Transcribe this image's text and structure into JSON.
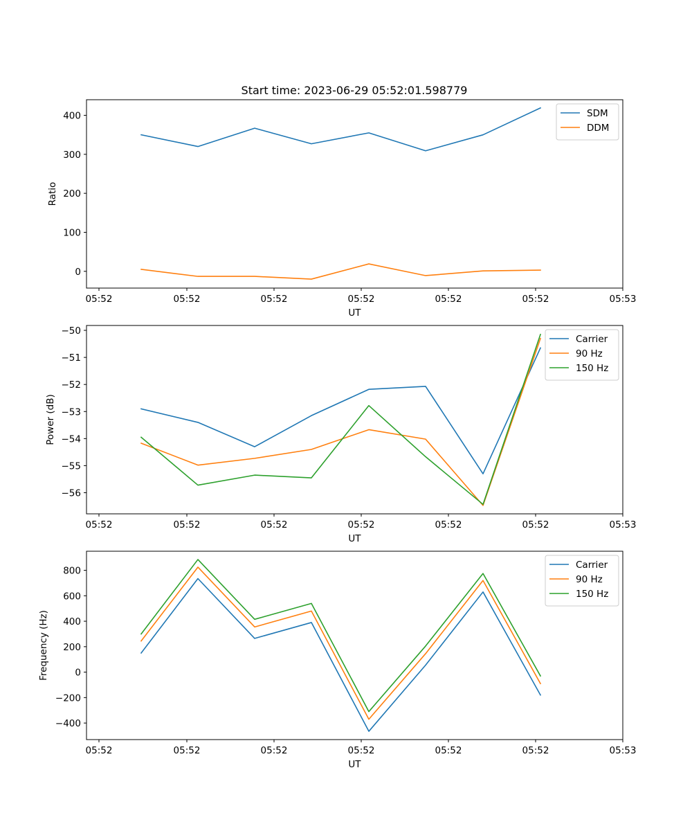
{
  "chart_data": [
    {
      "type": "line",
      "title": "Start time: 2023-06-29 05:52:01.598779",
      "xlabel": "UT",
      "ylabel": "Ratio",
      "x_tick_labels": [
        "05:52",
        "05:52",
        "05:52",
        "05:52",
        "05:52",
        "05:52",
        "05:53"
      ],
      "y_ticks": [
        0,
        100,
        200,
        300,
        400
      ],
      "ylim": [
        -43,
        440
      ],
      "grid": false,
      "legend_position": "upper right",
      "series": [
        {
          "name": "SDM",
          "color": "#1f77b4",
          "values": [
            350,
            320,
            367,
            327,
            355,
            309,
            350,
            419
          ]
        },
        {
          "name": "DDM",
          "color": "#ff7f0e",
          "values": [
            5,
            -13,
            -13,
            -20,
            19,
            -11,
            1,
            3
          ]
        }
      ]
    },
    {
      "type": "line",
      "title": "",
      "xlabel": "UT",
      "ylabel": "Power (dB)",
      "x_tick_labels": [
        "05:52",
        "05:52",
        "05:52",
        "05:52",
        "05:52",
        "05:52",
        "05:53"
      ],
      "y_ticks": [
        -56,
        -55,
        -54,
        -53,
        -52,
        -51,
        -50
      ],
      "ylim": [
        -56.78,
        -49.82
      ],
      "grid": false,
      "legend_position": "upper right",
      "series": [
        {
          "name": "Carrier",
          "color": "#1f77b4",
          "values": [
            -52.9,
            -53.4,
            -54.3,
            -53.15,
            -52.18,
            -52.07,
            -55.3,
            -50.65
          ]
        },
        {
          "name": "90 Hz",
          "color": "#ff7f0e",
          "values": [
            -54.17,
            -54.98,
            -54.73,
            -54.4,
            -53.67,
            -54.02,
            -56.47,
            -50.3
          ]
        },
        {
          "name": "150 Hz",
          "color": "#2ca02c",
          "values": [
            -53.95,
            -55.72,
            -55.35,
            -55.45,
            -52.78,
            -54.67,
            -56.43,
            -50.15
          ]
        }
      ]
    },
    {
      "type": "line",
      "title": "",
      "xlabel": "UT",
      "ylabel": "Frequency (Hz)",
      "x_tick_labels": [
        "05:52",
        "05:52",
        "05:52",
        "05:52",
        "05:52",
        "05:52",
        "05:53"
      ],
      "y_ticks": [
        -400,
        -200,
        0,
        200,
        400,
        600,
        800
      ],
      "ylim": [
        -530,
        950
      ],
      "grid": false,
      "legend_position": "upper right",
      "series": [
        {
          "name": "Carrier",
          "color": "#1f77b4",
          "values": [
            150,
            735,
            265,
            390,
            -465,
            55,
            630,
            -180
          ]
        },
        {
          "name": "90 Hz",
          "color": "#ff7f0e",
          "values": [
            245,
            825,
            355,
            480,
            -370,
            145,
            720,
            -90
          ]
        },
        {
          "name": "150 Hz",
          "color": "#2ca02c",
          "values": [
            300,
            885,
            415,
            540,
            -310,
            205,
            775,
            -30
          ]
        }
      ]
    }
  ]
}
